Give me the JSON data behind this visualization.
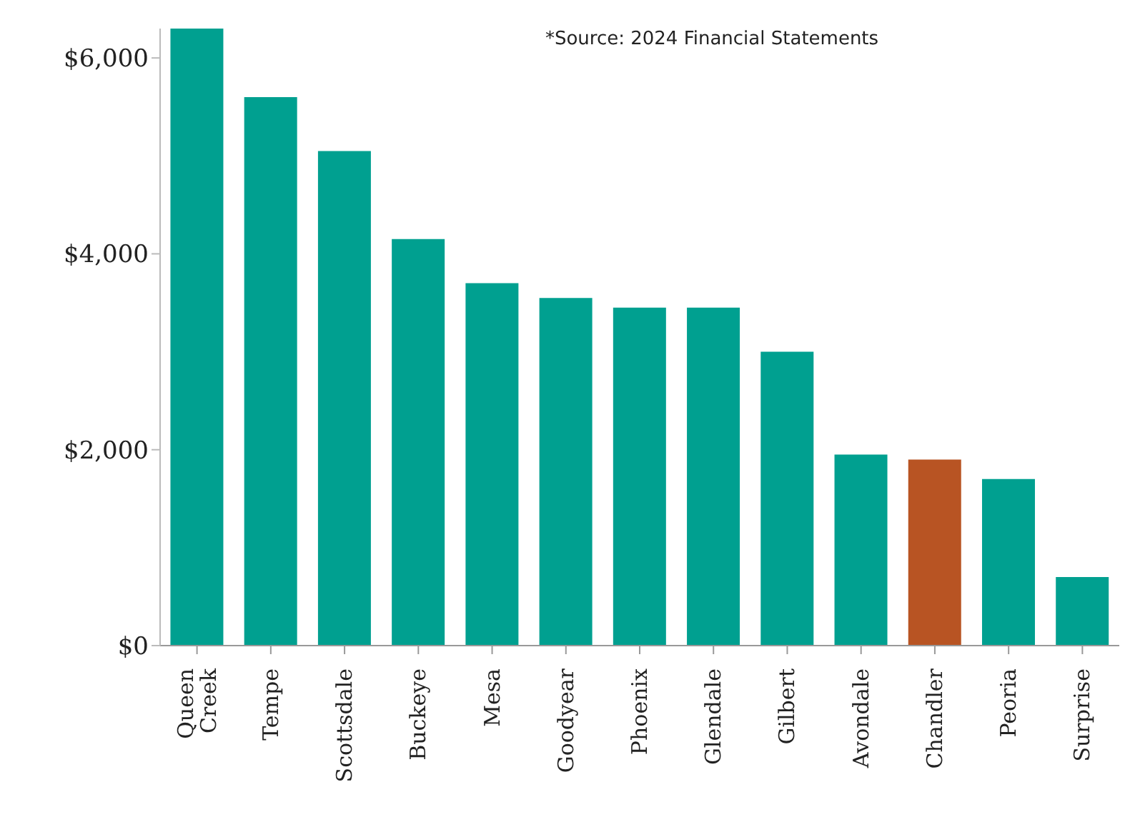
{
  "chart_data": {
    "type": "bar",
    "annotations": [
      "*Source: 2024 Financial Statements"
    ],
    "categories": [
      "Queen Creek",
      "Tempe",
      "Scottsdale",
      "Buckeye",
      "Mesa",
      "Goodyear",
      "Phoenix",
      "Glendale",
      "Gilbert",
      "Avondale",
      "Chandler",
      "Peoria",
      "Surprise"
    ],
    "values": [
      6300,
      5600,
      5050,
      4150,
      3700,
      3550,
      3450,
      3450,
      3000,
      1950,
      1900,
      1700,
      700
    ],
    "colors": [
      "#00a090",
      "#00a090",
      "#00a090",
      "#00a090",
      "#00a090",
      "#00a090",
      "#00a090",
      "#00a090",
      "#00a090",
      "#00a090",
      "#b85423",
      "#00a090",
      "#00a090"
    ],
    "ylim": [
      0,
      6300
    ],
    "yticks": [
      {
        "value": 0,
        "label": "$0"
      },
      {
        "value": 2000,
        "label": "$2,000"
      },
      {
        "value": 4000,
        "label": "$4,000"
      },
      {
        "value": 6000,
        "label": "$6,000"
      }
    ],
    "grid": false,
    "legend": false
  }
}
